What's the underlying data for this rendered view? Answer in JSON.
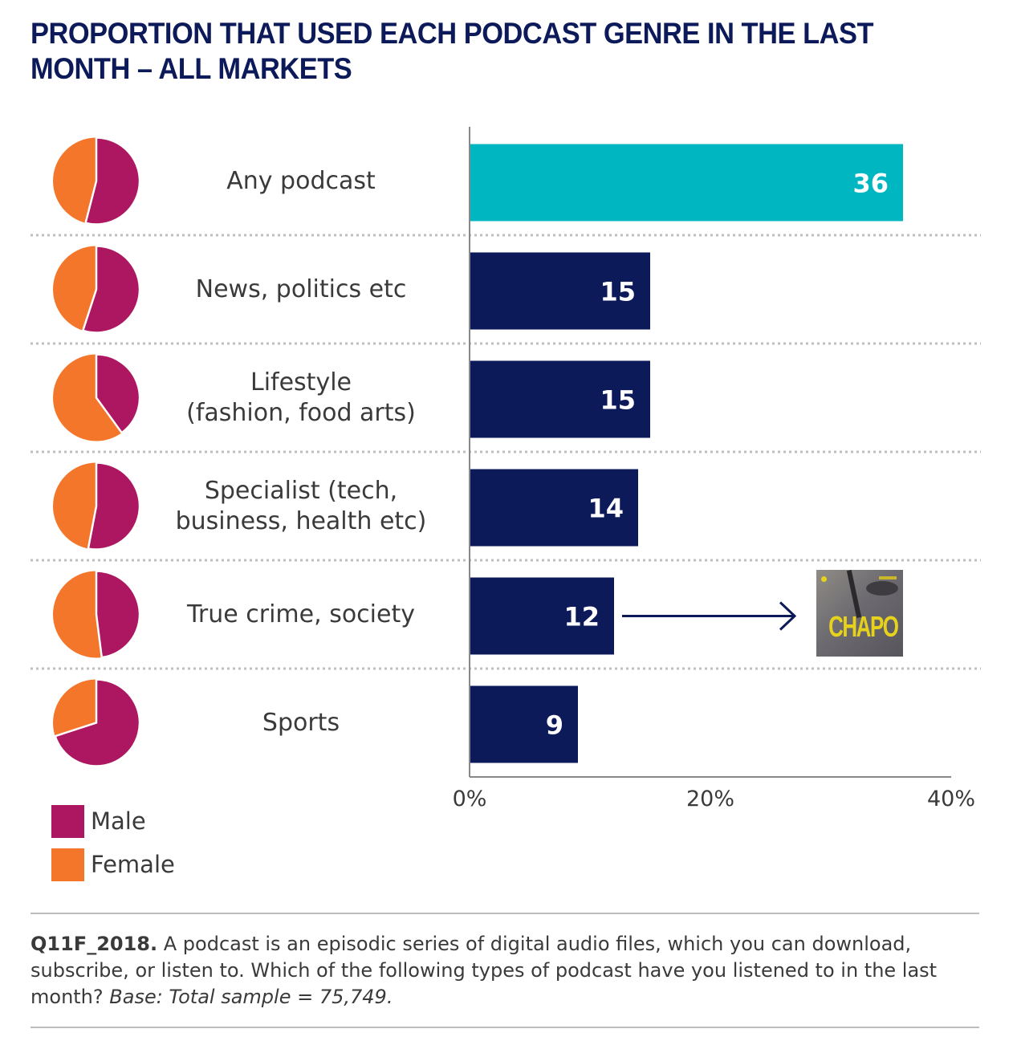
{
  "title": "PROPORTION THAT USED EACH PODCAST GENRE IN THE LAST MONTH – ALL MARKETS",
  "colors": {
    "title": "#0d1a5a",
    "highlight_bar": "#00b6c1",
    "bar": "#0d1a5a",
    "male": "#ad1660",
    "female": "#f4762a",
    "axis": "#888888",
    "divider": "#bfbfbf",
    "bar_label": "#ffffff"
  },
  "legend": [
    {
      "key": "male",
      "label": "Male"
    },
    {
      "key": "female",
      "label": "Female"
    }
  ],
  "annotation": {
    "target_category": "True crime, society",
    "image_label": "CHAPO"
  },
  "footnote": {
    "code": "Q11F_2018.",
    "text": " A podcast is an episodic series of digital audio files, which you can download, subscribe, or listen to. Which of the following types of podcast have you listened to in the last month? ",
    "base": "Base: Total sample = 75,749."
  },
  "chart_data": {
    "type": "bar",
    "orientation": "horizontal",
    "title": "PROPORTION THAT USED EACH PODCAST GENRE IN THE LAST MONTH – ALL MARKETS",
    "xlabel": "",
    "ylabel": "",
    "xlim": [
      0,
      40
    ],
    "x_ticks": [
      0,
      20,
      40
    ],
    "x_tick_labels": [
      "0%",
      "20%",
      "40%"
    ],
    "grid": false,
    "categories": [
      "Any podcast",
      "News, politics etc",
      "Lifestyle\n(fashion, food arts)",
      "Specialist (tech,\nbusiness, health etc)",
      "True crime, society",
      "Sports"
    ],
    "values": [
      36,
      15,
      15,
      14,
      12,
      9
    ],
    "value_labels": [
      "36",
      "15",
      "15",
      "14",
      "12",
      "9"
    ],
    "highlight_index": 0,
    "gender_split": {
      "type": "pie",
      "legend_placement": "bottom-left",
      "series": [
        {
          "name": "Male",
          "values": [
            54,
            55,
            40,
            53,
            48,
            70
          ]
        },
        {
          "name": "Female",
          "values": [
            46,
            45,
            60,
            47,
            52,
            30
          ]
        }
      ]
    }
  }
}
